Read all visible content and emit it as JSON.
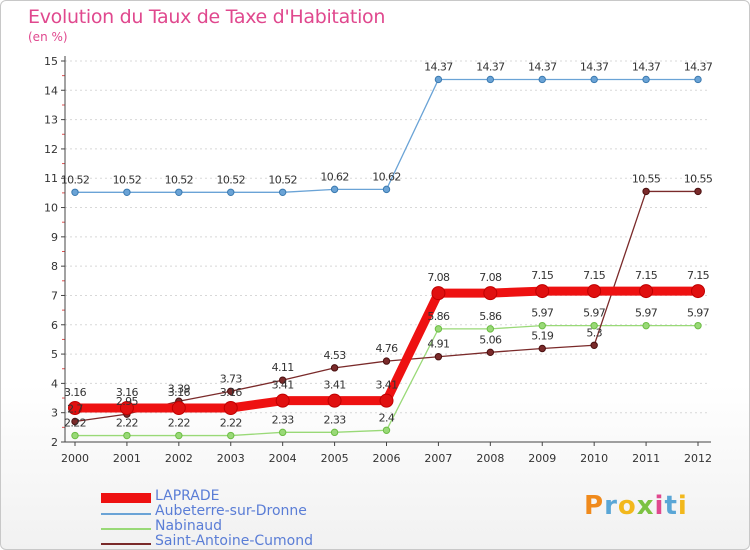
{
  "chart_data": {
    "type": "line",
    "title": "Evolution du Taux de Taxe d'Habitation",
    "unit_label": "(en %)",
    "xlabel": "",
    "ylabel": "",
    "ylim": [
      2,
      15
    ],
    "yticks": [
      2,
      3,
      4,
      5,
      6,
      7,
      8,
      9,
      10,
      11,
      12,
      13,
      14,
      15
    ],
    "categories": [
      "2000",
      "2001",
      "2002",
      "2003",
      "2004",
      "2005",
      "2006",
      "2007",
      "2008",
      "2009",
      "2010",
      "2011",
      "2012"
    ],
    "series": [
      {
        "name": "LAPRADE",
        "color": "#ee1111",
        "values": [
          3.16,
          3.16,
          3.16,
          3.16,
          3.41,
          3.41,
          3.41,
          7.08,
          7.08,
          7.15,
          7.15,
          7.15,
          7.15
        ]
      },
      {
        "name": "Aubeterre-sur-Dronne",
        "color": "#6aa3d6",
        "values": [
          10.52,
          10.52,
          10.52,
          10.52,
          10.52,
          10.62,
          10.62,
          14.37,
          14.37,
          14.37,
          14.37,
          14.37,
          14.37
        ]
      },
      {
        "name": "Nabinaud",
        "color": "#99d977",
        "values": [
          2.22,
          2.22,
          2.22,
          2.22,
          2.33,
          2.33,
          2.4,
          5.86,
          5.86,
          5.97,
          5.97,
          5.97,
          5.97
        ]
      },
      {
        "name": "Saint-Antoine-Cumond",
        "color": "#7a2a2a",
        "values": [
          2.7,
          2.95,
          3.39,
          3.73,
          4.11,
          4.53,
          4.76,
          4.91,
          5.06,
          5.19,
          5.3,
          10.55,
          10.55
        ]
      }
    ],
    "data_labels": {
      "LAPRADE": [
        "3.16",
        "3.16",
        "3.16",
        "3.16",
        "3.41",
        "3.41",
        "3.41",
        "7.08",
        "7.08",
        "7.15",
        "7.15",
        "7.15",
        "7.15"
      ],
      "Aubeterre-sur-Dronne": [
        "10.52",
        "10.52",
        "10.52",
        "10.52",
        "10.52",
        "10.62",
        "10.62",
        "14.37",
        "14.37",
        "14.37",
        "14.37",
        "14.37",
        "14.37"
      ],
      "Nabinaud": [
        "2.22",
        "2.22",
        "2.22",
        "2.22",
        "2.33",
        "2.33",
        "2.4",
        "5.86",
        "5.86",
        "5.97",
        "5.97",
        "5.97",
        "5.97"
      ],
      "Saint-Antoine-Cumond": [
        "2.7",
        "2.95",
        "3.39",
        "3.73",
        "4.11",
        "4.53",
        "4.76",
        "4.91",
        "5.06",
        "5.19",
        "5.3",
        "10.55",
        "10.55"
      ]
    },
    "legend": "bottom-left"
  },
  "brand": {
    "name": "Proxiti",
    "letters": [
      "P",
      "r",
      "o",
      "x",
      "i",
      "t",
      "i"
    ],
    "colors": [
      "#f08a1c",
      "#5aa6d6",
      "#f2b81c",
      "#7cc242",
      "#e0488e",
      "#5aa6d6",
      "#f2b81c"
    ]
  }
}
